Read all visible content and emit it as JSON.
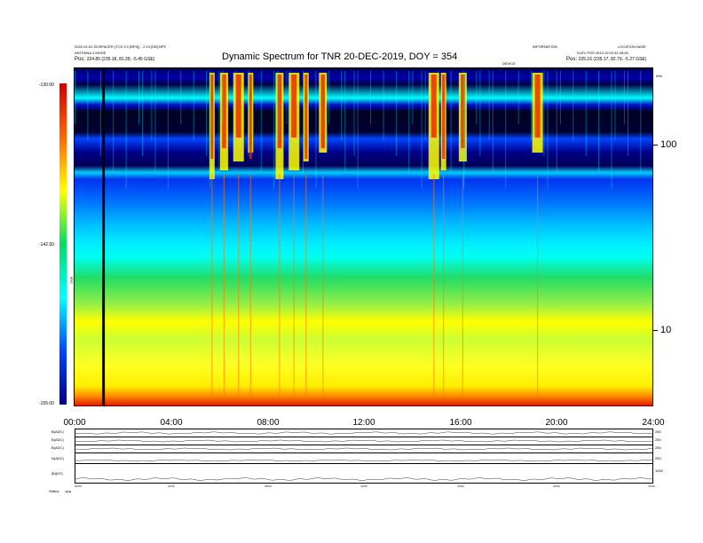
{
  "header": {
    "title": "Dynamic Spectrum for TNR 20-DEC-2019, DOY = 354",
    "left_line1": "2020-01-02 DOSPACER (TCS 3.0 [BPS]) - 2-10 [DB] BPS",
    "left_line2": "ANTENNA 3 MODE",
    "left_pos_label": "Pos:",
    "left_pos_value": "224.85 (235.18, 81.28, -5.45 GSE)",
    "center_small": "DEVICE",
    "right_top1": "INFORMATION",
    "right_top2": "LOCATION BASE",
    "right_line2": "ELEV POS 2019 10:03 02:28:28",
    "right_pos_label": "Pos:",
    "right_pos_value": "225.16 (235.17, 82.79, -5.27 GSE)",
    "right_khz": "kHz"
  },
  "colorbar": {
    "ticks": [
      "-130.00",
      "-142.50",
      "-155.00"
    ],
    "label": "TNR",
    "colors": [
      "#d00000",
      "#ff6600",
      "#ffff00",
      "#00dd66",
      "#00ffff",
      "#0044ff",
      "#000088"
    ]
  },
  "chart_data": {
    "type": "heatmap",
    "title": "Dynamic Spectrum for TNR 20-DEC-2019, DOY = 354",
    "x_ticks": [
      "00:00",
      "04:00",
      "08:00",
      "12:00",
      "16:00",
      "20:00",
      "24:00"
    ],
    "x_range_hours": [
      0,
      24
    ],
    "y_scale": "log",
    "y_unit": "kHz",
    "y_ticks": [
      100,
      10
    ],
    "y_ticks_text": [
      "100",
      "10"
    ],
    "z_range": [
      -155,
      -130
    ],
    "vertical_marker_hour": 1.2,
    "burst_hours": [
      5.7,
      6.2,
      6.8,
      7.3,
      8.5,
      9.1,
      9.6,
      10.3,
      14.9,
      15.3,
      16.1,
      19.2
    ]
  },
  "bottom_panels": {
    "left_labels": [
      "B(ADC)",
      "B(ADC)",
      "B(ADC)",
      "N(ADC)",
      "|B|(NT)"
    ],
    "right_labels": [
      "250",
      "250",
      "250",
      "250",
      "1000"
    ],
    "status_label": "Status",
    "status_value": "spq",
    "x_ticks": [
      "00:00",
      "04:00",
      "08:00",
      "12:00",
      "16:00",
      "20:00",
      "24:00"
    ]
  }
}
